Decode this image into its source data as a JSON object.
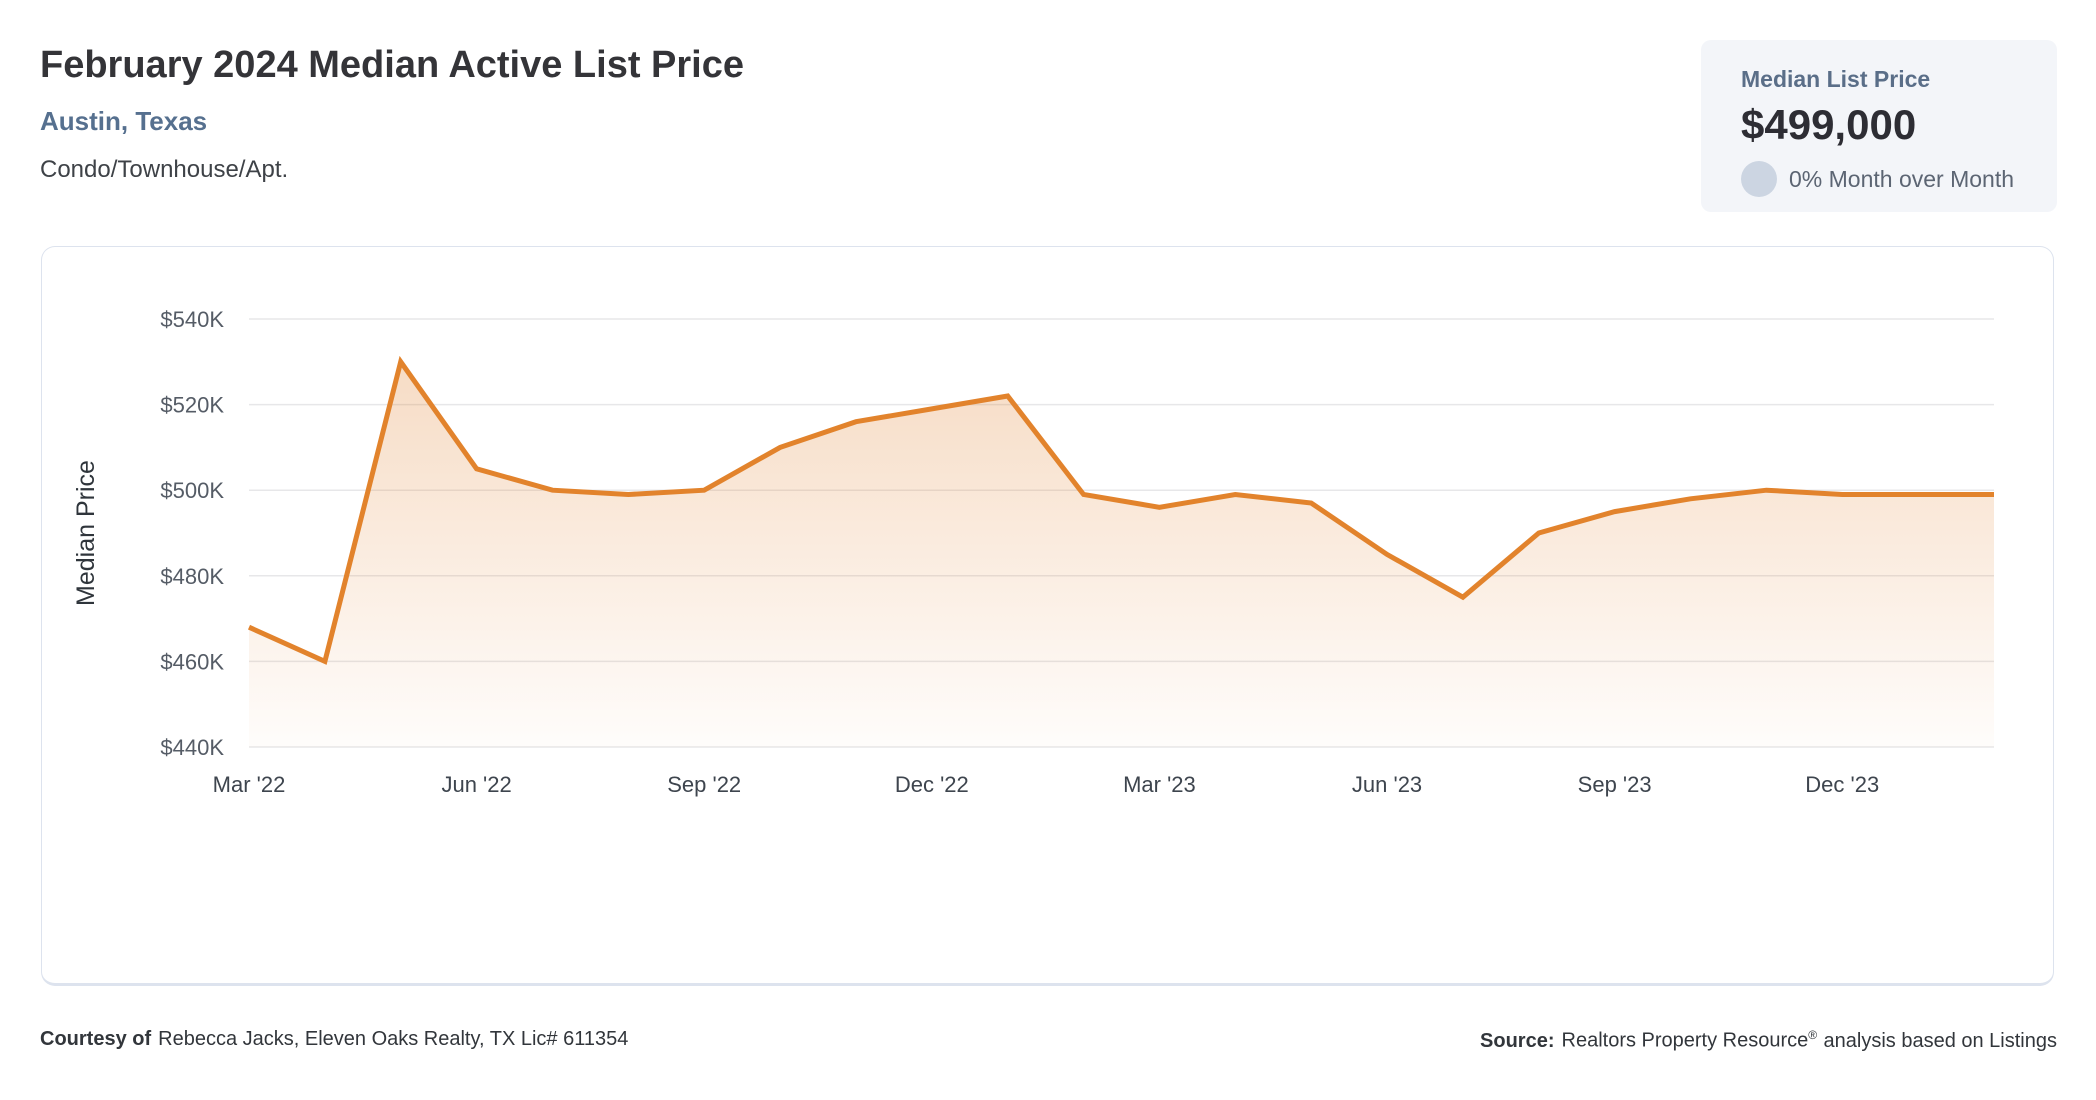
{
  "header": {
    "title": "February 2024 Median Active List Price",
    "location": "Austin, Texas",
    "property_type": "Condo/Townhouse/Apt."
  },
  "summary_card": {
    "label": "Median List Price",
    "value": "$499,000",
    "mom_text": "0% Month over Month",
    "mom_percent": "0%",
    "background_color": "#f3f5f9",
    "circle_color": "#ccd5e2"
  },
  "chart_data": {
    "type": "area",
    "series_name": "Median Active List Price",
    "x": [
      "Mar '22",
      "Apr '22",
      "May '22",
      "Jun '22",
      "Jul '22",
      "Aug '22",
      "Sep '22",
      "Oct '22",
      "Nov '22",
      "Dec '22",
      "Jan '23",
      "Feb '23",
      "Mar '23",
      "Apr '23",
      "May '23",
      "Jun '23",
      "Jul '23",
      "Aug '23",
      "Sep '23",
      "Oct '23",
      "Nov '23",
      "Dec '23",
      "Jan '24",
      "Feb '24"
    ],
    "values": [
      468000,
      460000,
      530000,
      505000,
      500000,
      499000,
      500000,
      510000,
      516000,
      519000,
      522000,
      499000,
      496000,
      499000,
      497000,
      485000,
      475000,
      490000,
      495000,
      498000,
      500000,
      499000,
      499000,
      499000
    ],
    "xlabel": "",
    "ylabel": "Median Price",
    "ylim": [
      440000,
      540000
    ],
    "y_ticks": [
      {
        "label": "$540K",
        "value": 540000
      },
      {
        "label": "$520K",
        "value": 520000
      },
      {
        "label": "$500K",
        "value": 500000
      },
      {
        "label": "$480K",
        "value": 480000
      },
      {
        "label": "$460K",
        "value": 460000
      },
      {
        "label": "$440K",
        "value": 440000
      }
    ],
    "x_ticks": [
      {
        "label": "Mar '22",
        "index": 0
      },
      {
        "label": "Jun '22",
        "index": 3
      },
      {
        "label": "Sep '22",
        "index": 6
      },
      {
        "label": "Dec '22",
        "index": 9
      },
      {
        "label": "Mar '23",
        "index": 12
      },
      {
        "label": "Jun '23",
        "index": 15
      },
      {
        "label": "Sep '23",
        "index": 18
      },
      {
        "label": "Dec '23",
        "index": 21
      }
    ],
    "grid": "horizontal",
    "legend": "none",
    "line_color": "#e2832c",
    "fill_color_top": "rgba(224,127,43,0.30)",
    "fill_color_bottom": "rgba(224,127,43,0.02)"
  },
  "footer": {
    "courtesy_label": "Courtesy of",
    "courtesy_text": "Rebecca Jacks, Eleven Oaks Realty, TX Lic# 611354",
    "source_label": "Source:",
    "source_name": "Realtors Property Resource",
    "source_reg": "®",
    "source_text": "analysis based on Listings"
  }
}
